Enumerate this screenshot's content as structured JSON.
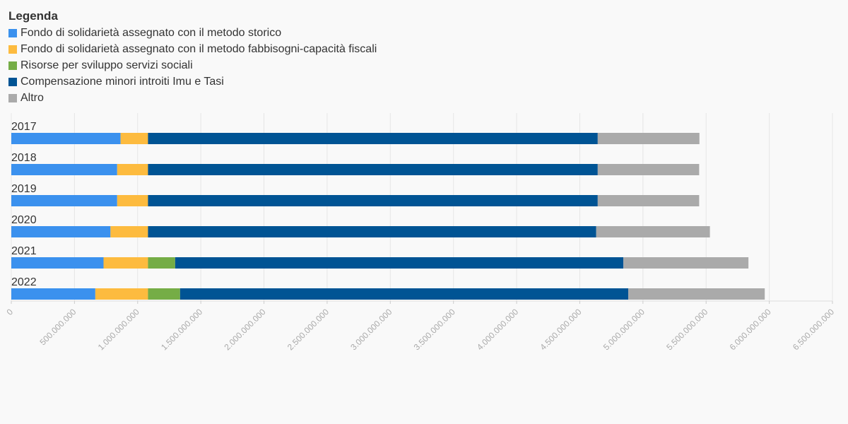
{
  "chart_data": {
    "type": "bar",
    "orientation": "horizontal",
    "stacked": true,
    "legend_title": "Legenda",
    "legend_position": "top-left",
    "categories": [
      "2017",
      "2018",
      "2019",
      "2020",
      "2021",
      "2022"
    ],
    "series": [
      {
        "name": "Fondo di solidarietà assegnato con il metodo storico",
        "color": "#3b91ee",
        "values": [
          865000000,
          838000000,
          838000000,
          785000000,
          730000000,
          665000000
        ]
      },
      {
        "name": "Fondo di solidarietà assegnato con il metodo fabbisogni-capacità fiscali",
        "color": "#fdbb3f",
        "values": [
          217000000,
          244000000,
          244000000,
          297000000,
          352000000,
          417000000
        ]
      },
      {
        "name": "Risorse per sviluppo servizi sociali",
        "color": "#75ad46",
        "values": [
          0,
          0,
          0,
          0,
          215000000,
          254000000
        ]
      },
      {
        "name": "Compensazione minori introiti Imu e Tasi",
        "color": "#005494",
        "values": [
          3560000000,
          3560000000,
          3560000000,
          3548000000,
          3548000000,
          3548000000
        ]
      },
      {
        "name": "Altro",
        "color": "#aaaaaa",
        "values": [
          805000000,
          803000000,
          803000000,
          900000000,
          990000000,
          1080000000
        ]
      }
    ],
    "xlim": [
      0,
      6500000000
    ],
    "x_ticks": [
      0,
      500000000,
      1000000000,
      1500000000,
      2000000000,
      2500000000,
      3000000000,
      3500000000,
      4000000000,
      4500000000,
      5000000000,
      5500000000,
      6000000000,
      6500000000
    ],
    "x_tick_labels": [
      "0",
      "500.000.000",
      "1.000.000.000",
      "1.500.000.000",
      "2.000.000.000",
      "2.500.000.000",
      "3.000.000.000",
      "3.500.000.000",
      "4.000.000.000",
      "4.500.000.000",
      "5.000.000.000",
      "5.500.000.000",
      "6.000.000.000",
      "6.500.000.000"
    ],
    "grid": true,
    "title": "",
    "xlabel": "",
    "ylabel": ""
  }
}
